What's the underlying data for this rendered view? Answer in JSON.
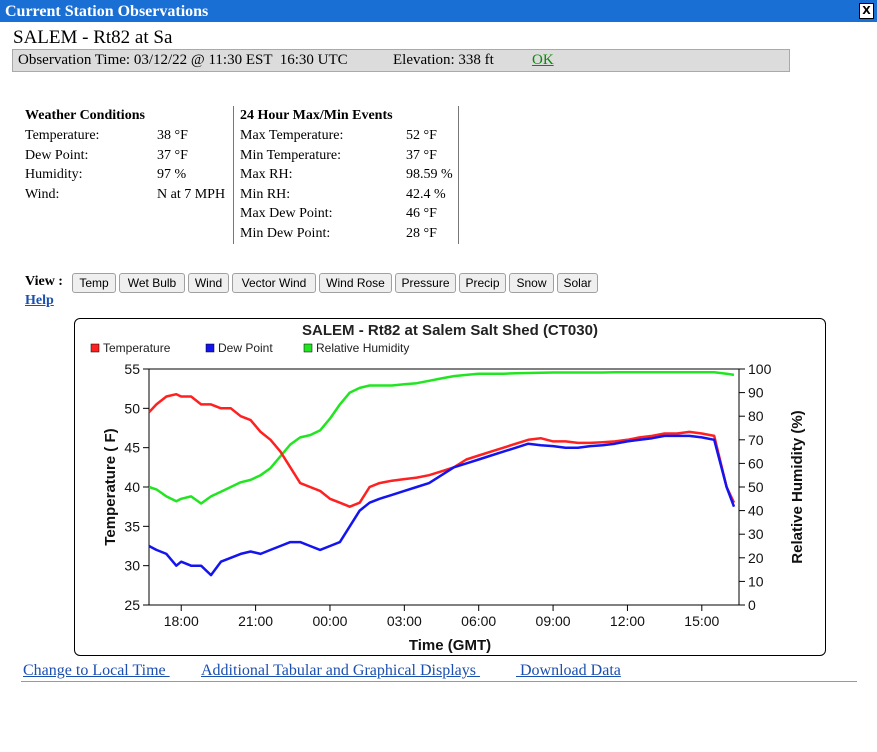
{
  "window": {
    "title": "Current Station Observations",
    "close_label": "X"
  },
  "station_name": "SALEM - Rt82 at Sa",
  "obs_bar": {
    "observation_time": "Observation Time: 03/12/22 @ 11:30 EST  16:30 UTC",
    "elevation": "Elevation: 338 ft",
    "status_link": "OK"
  },
  "weather_conditions": {
    "title": "Weather Conditions",
    "rows": [
      {
        "label": "Temperature:",
        "value": "38 °F"
      },
      {
        "label": "Dew Point:",
        "value": "37 °F"
      },
      {
        "label": "Humidity:",
        "value": "97 %"
      },
      {
        "label": "Wind:",
        "value": "N at 7 MPH"
      }
    ]
  },
  "events_24h": {
    "title": "24 Hour Max/Min Events",
    "rows": [
      {
        "label": "Max Temperature:",
        "value": "52 °F"
      },
      {
        "label": "Min Temperature:",
        "value": "37 °F"
      },
      {
        "label": "Max RH:",
        "value": "98.59 %"
      },
      {
        "label": "Min RH:",
        "value": "42.4 %"
      },
      {
        "label": "Max Dew Point:",
        "value": "46 °F"
      },
      {
        "label": "Min Dew Point:",
        "value": "28 °F"
      }
    ]
  },
  "view": {
    "label": "View :",
    "buttons": [
      "Temp",
      "Wet Bulb",
      "Wind",
      "Vector Wind",
      "Wind Rose",
      "Pressure",
      "Precip",
      "Snow",
      "Solar"
    ]
  },
  "help_link": "Help",
  "bottom_links": [
    "Change to Local Time ",
    "Additional Tabular and Graphical Displays ",
    " Download Data"
  ],
  "colors": {
    "title_bar": "#1a6fd4",
    "temperature": "#ff2020",
    "dew_point": "#1414f0",
    "relative_humidity": "#22e522",
    "link": "#1a4fb0",
    "ok_link": "#0a8a0a"
  },
  "chart_data": {
    "type": "line",
    "title": "SALEM - Rt82 at Salem Salt Shed (CT030)",
    "xlabel": "Time (GMT)",
    "ylabel": "Temperature ( F)",
    "y2label": "Relative Humidity (%)",
    "xlim": [
      16.7,
      40.5
    ],
    "ylim": [
      25,
      55
    ],
    "y2lim": [
      0,
      100
    ],
    "x_ticks": [
      18,
      21,
      24,
      27,
      30,
      33,
      36,
      39
    ],
    "x_tick_labels": [
      "18:00",
      "21:00",
      "00:00",
      "03:00",
      "06:00",
      "09:00",
      "12:00",
      "15:00"
    ],
    "y_ticks": [
      25,
      30,
      35,
      40,
      45,
      50,
      55
    ],
    "y2_ticks": [
      0,
      10,
      20,
      30,
      40,
      50,
      60,
      70,
      80,
      90,
      100
    ],
    "legend_position": "top-left",
    "x_unit_note": "hours since 00:00 GMT on the start day; values above 24 are the next day",
    "series": [
      {
        "name": "Temperature",
        "axis": "left",
        "x": [
          16.7,
          17.0,
          17.4,
          17.8,
          18.0,
          18.4,
          18.8,
          19.2,
          19.6,
          20.0,
          20.4,
          20.8,
          21.2,
          21.6,
          22.0,
          22.4,
          22.8,
          23.2,
          23.6,
          24.0,
          24.4,
          24.8,
          25.2,
          25.6,
          26.0,
          26.5,
          27.0,
          27.5,
          28.0,
          28.5,
          29.0,
          29.5,
          30.0,
          30.5,
          31.0,
          31.5,
          32.0,
          32.5,
          33.0,
          33.5,
          34.0,
          34.5,
          35.0,
          35.5,
          36.0,
          36.5,
          37.0,
          37.5,
          38.0,
          38.5,
          39.0,
          39.5,
          40.0,
          40.3
        ],
        "values": [
          49.5,
          50.5,
          51.5,
          51.8,
          51.5,
          51.5,
          50.5,
          50.5,
          50.0,
          50.0,
          49.0,
          48.5,
          47.0,
          46.0,
          44.5,
          42.5,
          40.5,
          40.0,
          39.5,
          38.5,
          38.0,
          37.5,
          38.0,
          40.0,
          40.5,
          40.8,
          41.0,
          41.2,
          41.5,
          42.0,
          42.5,
          43.5,
          44.0,
          44.5,
          45.0,
          45.5,
          46.0,
          46.2,
          45.8,
          45.8,
          45.6,
          45.6,
          45.7,
          45.8,
          46.0,
          46.3,
          46.5,
          46.8,
          46.8,
          47.0,
          46.8,
          46.5,
          40.0,
          38.0
        ]
      },
      {
        "name": "Dew Point",
        "axis": "left",
        "x": [
          16.7,
          17.0,
          17.4,
          17.8,
          18.0,
          18.4,
          18.8,
          19.2,
          19.6,
          20.0,
          20.4,
          20.8,
          21.2,
          21.6,
          22.0,
          22.4,
          22.8,
          23.2,
          23.6,
          24.0,
          24.4,
          24.8,
          25.2,
          25.6,
          26.0,
          26.5,
          27.0,
          27.5,
          28.0,
          28.5,
          29.0,
          29.5,
          30.0,
          30.5,
          31.0,
          31.5,
          32.0,
          32.5,
          33.0,
          33.5,
          34.0,
          34.5,
          35.0,
          35.5,
          36.0,
          36.5,
          37.0,
          37.5,
          38.0,
          38.5,
          39.0,
          39.5,
          40.0,
          40.3
        ],
        "values": [
          32.5,
          32.0,
          31.5,
          30.0,
          30.5,
          30.0,
          30.0,
          28.8,
          30.5,
          31.0,
          31.5,
          31.8,
          31.5,
          32.0,
          32.5,
          33.0,
          33.0,
          32.5,
          32.0,
          32.5,
          33.0,
          35.0,
          37.0,
          38.0,
          38.5,
          39.0,
          39.5,
          40.0,
          40.5,
          41.5,
          42.5,
          43.0,
          43.5,
          44.0,
          44.5,
          45.0,
          45.5,
          45.3,
          45.2,
          45.0,
          45.0,
          45.2,
          45.3,
          45.5,
          45.8,
          46.0,
          46.2,
          46.5,
          46.5,
          46.5,
          46.3,
          46.0,
          40.0,
          37.5
        ]
      },
      {
        "name": "Relative Humidity",
        "axis": "right",
        "x": [
          16.7,
          17.0,
          17.4,
          17.8,
          18.0,
          18.4,
          18.8,
          19.2,
          19.6,
          20.0,
          20.4,
          20.8,
          21.2,
          21.6,
          22.0,
          22.4,
          22.8,
          23.2,
          23.6,
          24.0,
          24.4,
          24.8,
          25.2,
          25.6,
          26.0,
          26.5,
          27.0,
          27.5,
          28.0,
          28.5,
          29.0,
          29.5,
          30.0,
          30.5,
          31.0,
          31.5,
          32.0,
          32.5,
          33.0,
          33.5,
          34.0,
          34.5,
          35.0,
          35.5,
          36.0,
          36.5,
          37.0,
          37.5,
          38.0,
          38.5,
          39.0,
          39.5,
          40.0,
          40.3
        ],
        "values": [
          50,
          49,
          46,
          44,
          45,
          46,
          43,
          46,
          48,
          50,
          52,
          53,
          55,
          58,
          63,
          68,
          71,
          72,
          74,
          79,
          85,
          90,
          92,
          93,
          93,
          93,
          93.5,
          94,
          95,
          96,
          97,
          97.5,
          98,
          98,
          98,
          98.2,
          98.3,
          98.4,
          98.5,
          98.5,
          98.5,
          98.5,
          98.5,
          98.6,
          98.6,
          98.6,
          98.6,
          98.6,
          98.6,
          98.6,
          98.6,
          98.6,
          98.0,
          97.5
        ]
      }
    ]
  }
}
